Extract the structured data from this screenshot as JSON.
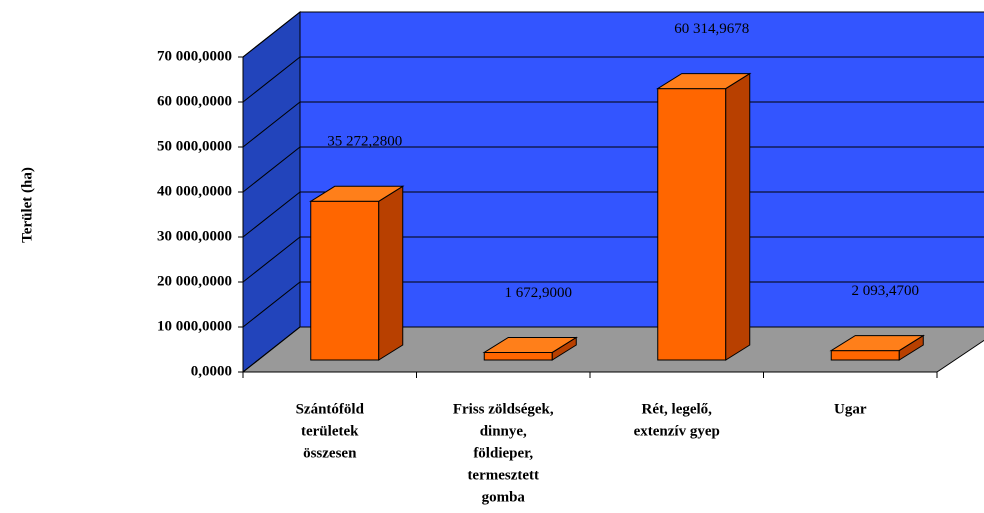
{
  "chart_data": {
    "type": "bar3d",
    "y_label": "Terület (ha)",
    "categories": [
      [
        "Szántóföld",
        "területek",
        "összesen"
      ],
      [
        "Friss zöldségek,",
        "dinnye,",
        "földieper,",
        "termesztett",
        "gomba"
      ],
      [
        "Rét, legelő,",
        "extenzív gyep"
      ],
      [
        "Ugar"
      ]
    ],
    "values": [
      35272.28,
      1672.9,
      60314.9678,
      2093.47
    ],
    "value_labels": [
      "35 272,2800",
      "1 672,9000",
      "60 314,9678",
      "2 093,4700"
    ],
    "color": "#ff6600",
    "ylim": [
      0,
      70000
    ],
    "yticks": [
      {
        "value": 0,
        "label": "0,0000"
      },
      {
        "value": 10000,
        "label": "10 000,0000"
      },
      {
        "value": 20000,
        "label": "20 000,0000"
      },
      {
        "value": 30000,
        "label": "30 000,0000"
      },
      {
        "value": 40000,
        "label": "40 000,0000"
      },
      {
        "value": 50000,
        "label": "50 000,0000"
      },
      {
        "value": 60000,
        "label": "60 000,0000"
      },
      {
        "value": 70000,
        "label": "70 000,0000"
      }
    ],
    "grid": true
  }
}
